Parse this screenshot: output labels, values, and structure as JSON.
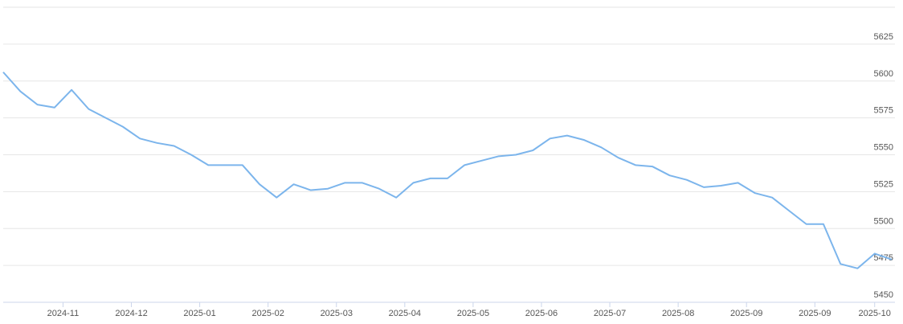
{
  "chart_data": {
    "type": "line",
    "x": [
      0,
      1,
      2,
      3,
      4,
      5,
      6,
      7,
      8,
      9,
      10,
      11,
      12,
      13,
      14,
      15,
      16,
      17,
      18,
      19,
      20,
      21,
      22,
      23,
      24,
      25,
      26,
      27,
      28,
      29,
      30,
      31,
      32,
      33,
      34,
      35,
      36,
      37,
      38,
      39,
      40,
      41,
      42,
      43,
      44,
      45,
      46,
      47,
      48,
      49,
      50,
      51,
      52
    ],
    "series": [
      {
        "color": "#7cb5ec",
        "values": [
          5606,
          5593,
          5584,
          5582,
          5594,
          5581,
          5575,
          5569,
          5561,
          5558,
          5556,
          5550,
          5543,
          5543,
          5543,
          5530,
          5521,
          5530,
          5526,
          5527,
          5531,
          5531,
          5527,
          5521,
          5531,
          5534,
          5534,
          5543,
          5546,
          5549,
          5550,
          5553,
          5561,
          5563,
          5560,
          5555,
          5548,
          5543,
          5542,
          5536,
          5533,
          5528,
          5529,
          5531,
          5524,
          5521,
          5512,
          5503,
          5503,
          5476,
          5473,
          5483,
          5479
        ]
      }
    ],
    "xlim": [
      0,
      52
    ],
    "xticks": [
      {
        "value": 3.5,
        "label": "2024-11"
      },
      {
        "value": 7.5,
        "label": "2024-12"
      },
      {
        "value": 11.5,
        "label": "2025-01"
      },
      {
        "value": 15.5,
        "label": "2025-02"
      },
      {
        "value": 19.5,
        "label": "2025-03"
      },
      {
        "value": 23.5,
        "label": "2025-04"
      },
      {
        "value": 27.5,
        "label": "2025-05"
      },
      {
        "value": 31.5,
        "label": "2025-06"
      },
      {
        "value": 35.5,
        "label": "2025-07"
      },
      {
        "value": 39.5,
        "label": "2025-08"
      },
      {
        "value": 43.5,
        "label": "2025-09"
      },
      {
        "value": 47.5,
        "label": "2025-09"
      },
      {
        "value": 51,
        "label": "2025-10"
      }
    ],
    "ylim": [
      5450,
      5650
    ],
    "yticks": [
      5450,
      5475,
      5500,
      5525,
      5550,
      5575,
      5600,
      5625
    ],
    "grid": true
  }
}
